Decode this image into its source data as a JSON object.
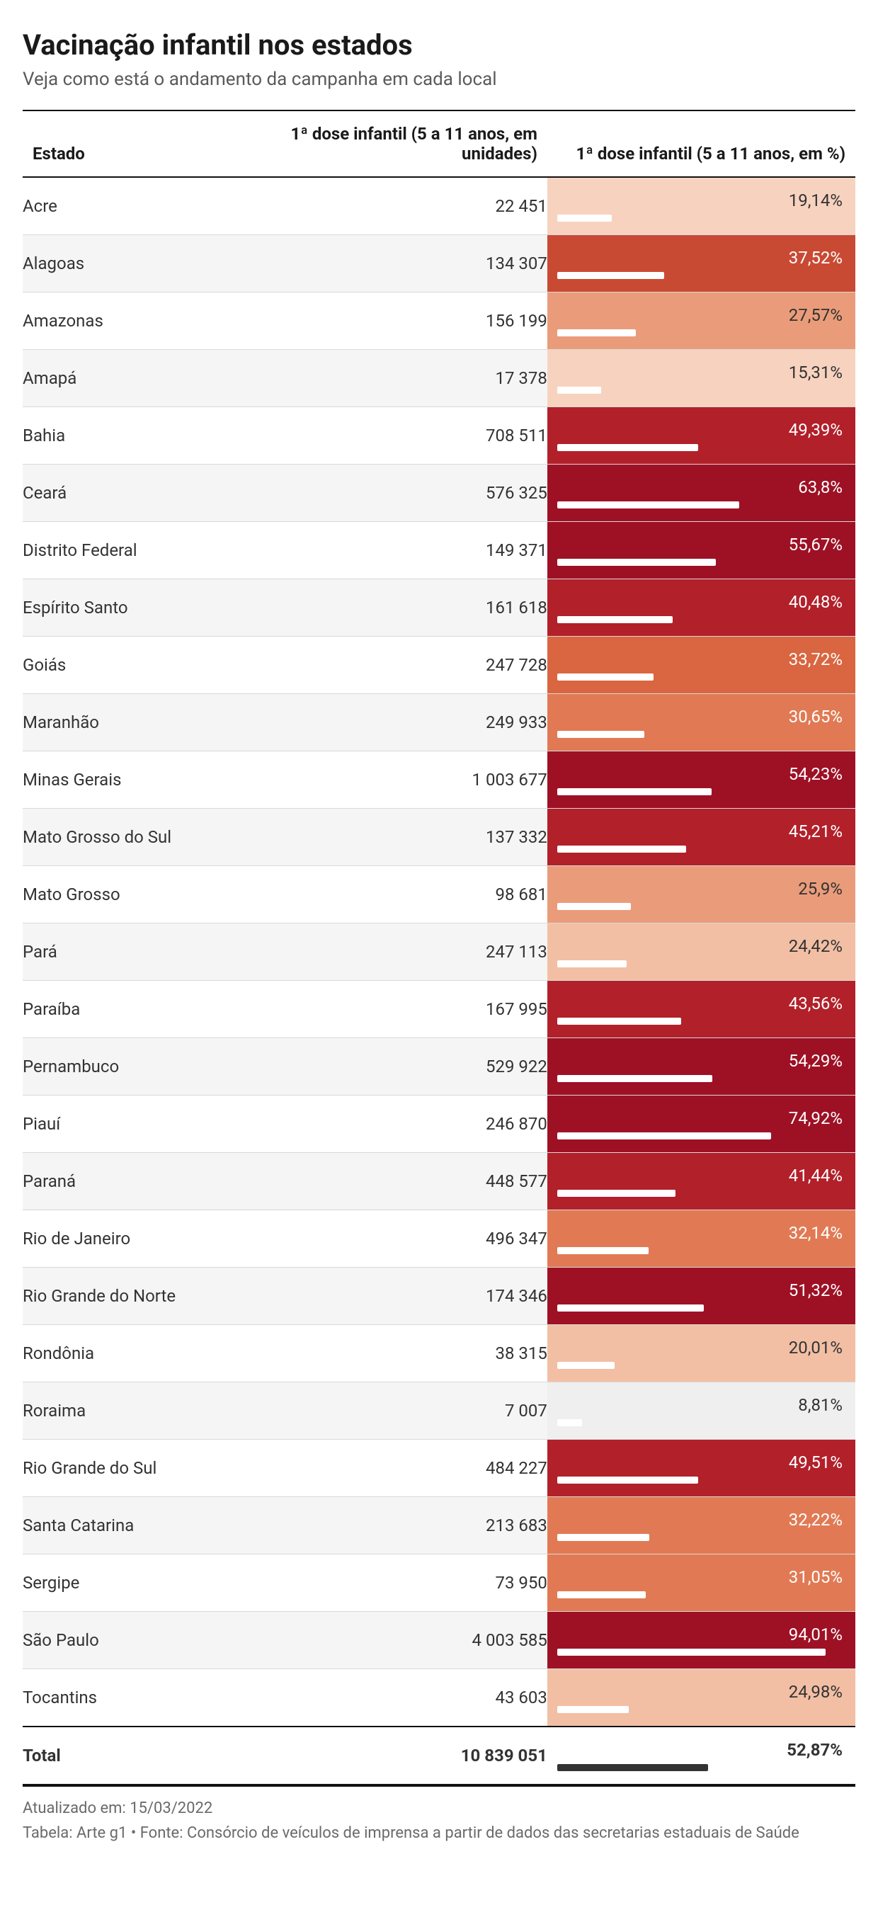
{
  "title": "Vacinação infantil nos estados",
  "subtitle": "Veja como está o andamento da campanha em cada local",
  "columns": {
    "state": "Estado",
    "units": "1ª dose infantil (5 a 11 anos, em unidades)",
    "pct": "1ª dose infantil (5 a 11 anos, em %)"
  },
  "colors": {
    "text_dark": "#1a1a1a",
    "text_light_on_dark": "#ffffff",
    "bar_fill": "#ffffff",
    "row_alt_bg": "#f5f5f5",
    "border": "#111111",
    "scale": [
      {
        "max": 10,
        "bg": "#efefef",
        "label": "#333333"
      },
      {
        "max": 20,
        "bg": "#f7d3bf",
        "label": "#333333"
      },
      {
        "max": 25,
        "bg": "#f2bfa4",
        "label": "#333333"
      },
      {
        "max": 30,
        "bg": "#ea9c7a",
        "label": "#333333"
      },
      {
        "max": 33,
        "bg": "#e17a54",
        "label": "#ffffff"
      },
      {
        "max": 36,
        "bg": "#d96640",
        "label": "#ffffff"
      },
      {
        "max": 40,
        "bg": "#c94a33",
        "label": "#ffffff"
      },
      {
        "max": 50,
        "bg": "#b2202a",
        "label": "#ffffff"
      },
      {
        "max": 101,
        "bg": "#9e1125",
        "label": "#ffffff"
      }
    ]
  },
  "rows": [
    {
      "state": "Acre",
      "units": "22 451",
      "pct_label": "19,14%",
      "pct_value": 19.14
    },
    {
      "state": "Alagoas",
      "units": "134 307",
      "pct_label": "37,52%",
      "pct_value": 37.52
    },
    {
      "state": "Amazonas",
      "units": "156 199",
      "pct_label": "27,57%",
      "pct_value": 27.57
    },
    {
      "state": "Amapá",
      "units": "17 378",
      "pct_label": "15,31%",
      "pct_value": 15.31
    },
    {
      "state": "Bahia",
      "units": "708 511",
      "pct_label": "49,39%",
      "pct_value": 49.39
    },
    {
      "state": "Ceará",
      "units": "576 325",
      "pct_label": "63,8%",
      "pct_value": 63.8
    },
    {
      "state": "Distrito Federal",
      "units": "149 371",
      "pct_label": "55,67%",
      "pct_value": 55.67
    },
    {
      "state": "Espírito Santo",
      "units": "161 618",
      "pct_label": "40,48%",
      "pct_value": 40.48
    },
    {
      "state": "Goiás",
      "units": "247 728",
      "pct_label": "33,72%",
      "pct_value": 33.72
    },
    {
      "state": "Maranhão",
      "units": "249 933",
      "pct_label": "30,65%",
      "pct_value": 30.65
    },
    {
      "state": "Minas Gerais",
      "units": "1 003 677",
      "pct_label": "54,23%",
      "pct_value": 54.23
    },
    {
      "state": "Mato Grosso do Sul",
      "units": "137 332",
      "pct_label": "45,21%",
      "pct_value": 45.21
    },
    {
      "state": "Mato Grosso",
      "units": "98 681",
      "pct_label": "25,9%",
      "pct_value": 25.9
    },
    {
      "state": "Pará",
      "units": "247 113",
      "pct_label": "24,42%",
      "pct_value": 24.42
    },
    {
      "state": "Paraíba",
      "units": "167 995",
      "pct_label": "43,56%",
      "pct_value": 43.56
    },
    {
      "state": "Pernambuco",
      "units": "529 922",
      "pct_label": "54,29%",
      "pct_value": 54.29
    },
    {
      "state": "Piauí",
      "units": "246 870",
      "pct_label": "74,92%",
      "pct_value": 74.92
    },
    {
      "state": "Paraná",
      "units": "448 577",
      "pct_label": "41,44%",
      "pct_value": 41.44
    },
    {
      "state": "Rio de Janeiro",
      "units": "496 347",
      "pct_label": "32,14%",
      "pct_value": 32.14
    },
    {
      "state": "Rio Grande do Norte",
      "units": "174 346",
      "pct_label": "51,32%",
      "pct_value": 51.32
    },
    {
      "state": "Rondônia",
      "units": "38 315",
      "pct_label": "20,01%",
      "pct_value": 20.01
    },
    {
      "state": "Roraima",
      "units": "7 007",
      "pct_label": "8,81%",
      "pct_value": 8.81
    },
    {
      "state": "Rio Grande do Sul",
      "units": "484 227",
      "pct_label": "49,51%",
      "pct_value": 49.51
    },
    {
      "state": "Santa Catarina",
      "units": "213 683",
      "pct_label": "32,22%",
      "pct_value": 32.22
    },
    {
      "state": "Sergipe",
      "units": "73 950",
      "pct_label": "31,05%",
      "pct_value": 31.05
    },
    {
      "state": "São Paulo",
      "units": "4 003 585",
      "pct_label": "94,01%",
      "pct_value": 94.01
    },
    {
      "state": "Tocantins",
      "units": "43 603",
      "pct_label": "24,98%",
      "pct_value": 24.98
    }
  ],
  "total": {
    "state": "Total",
    "units": "10 839 051",
    "pct_label": "52,87%",
    "pct_value": 52.87,
    "bg": "transparent",
    "label_color": "#333333"
  },
  "updated": "Atualizado em: 15/03/2022",
  "source": "Tabela: Arte g1 • Fonte: Consórcio de veículos de imprensa a partir de dados das secretarias estaduais de Saúde"
}
